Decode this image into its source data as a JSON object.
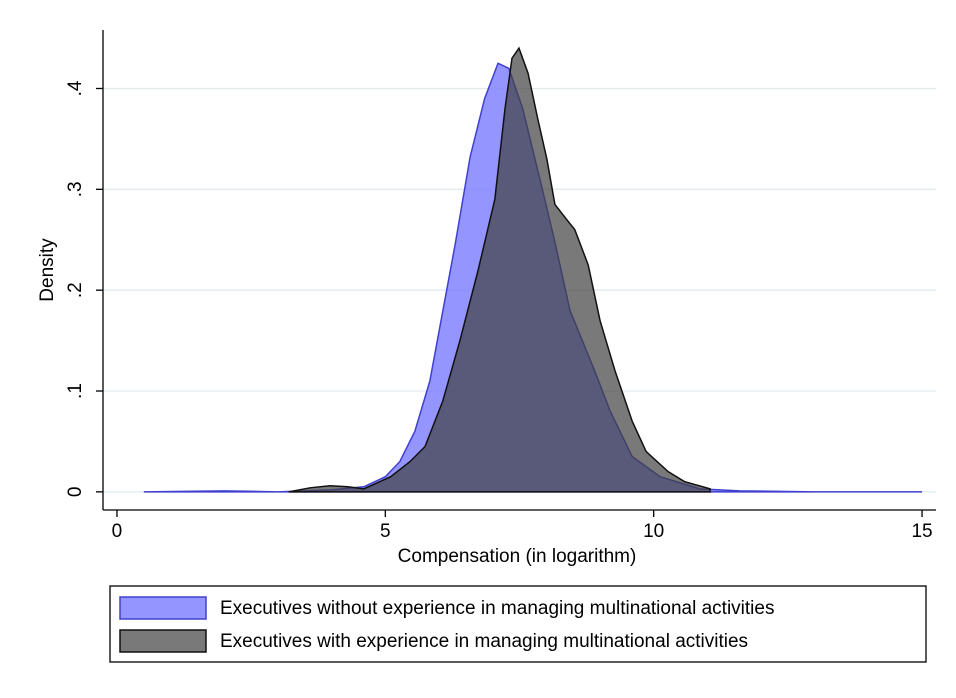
{
  "chart_data": {
    "type": "area",
    "xlabel": "Compensation (in logarithm)",
    "ylabel": "Density",
    "xlim": [
      -0.26,
      15.26
    ],
    "ylim": [
      -0.018,
      0.458
    ],
    "xticks": [
      0,
      5,
      10,
      15
    ],
    "yticks": [
      0,
      {
        "value": 0.1,
        "label": ".1"
      },
      {
        "value": 0.2,
        "label": ".2"
      },
      {
        "value": 0.3,
        "label": ".3"
      },
      {
        "value": 0.4,
        "label": ".4"
      }
    ],
    "grid": true,
    "legend": "bottom",
    "series": [
      {
        "name": "Executives without experience in managing multinational activities",
        "color": "#7b7bff",
        "x": [
          0.5,
          2,
          3,
          4,
          4.6,
          5.0,
          5.27,
          5.55,
          5.83,
          6.3,
          6.58,
          6.85,
          7.1,
          7.3,
          7.56,
          7.88,
          8.15,
          8.44,
          8.9,
          9.19,
          9.6,
          10.12,
          10.86,
          11.6,
          13,
          15
        ],
        "values": [
          0,
          0.001,
          0,
          0.002,
          0.005,
          0.015,
          0.03,
          0.06,
          0.11,
          0.245,
          0.332,
          0.39,
          0.425,
          0.42,
          0.38,
          0.31,
          0.25,
          0.18,
          0.12,
          0.08,
          0.035,
          0.015,
          0.003,
          0.001,
          0,
          0
        ]
      },
      {
        "name": "Executives with experience in managing multinational activities",
        "color": "#404040",
        "x": [
          3.2,
          3.6,
          3.97,
          4.3,
          4.6,
          5.1,
          5.46,
          5.74,
          6.07,
          6.39,
          6.73,
          7.04,
          7.23,
          7.36,
          7.49,
          7.66,
          7.84,
          8.01,
          8.16,
          8.38,
          8.53,
          8.78,
          9.0,
          9.28,
          9.6,
          9.86,
          10.27,
          10.58,
          11.05
        ],
        "values": [
          0,
          0.004,
          0.006,
          0.005,
          0.003,
          0.015,
          0.03,
          0.045,
          0.09,
          0.15,
          0.22,
          0.29,
          0.38,
          0.43,
          0.44,
          0.415,
          0.37,
          0.33,
          0.285,
          0.27,
          0.26,
          0.225,
          0.17,
          0.12,
          0.07,
          0.04,
          0.02,
          0.01,
          0.003
        ]
      }
    ]
  }
}
